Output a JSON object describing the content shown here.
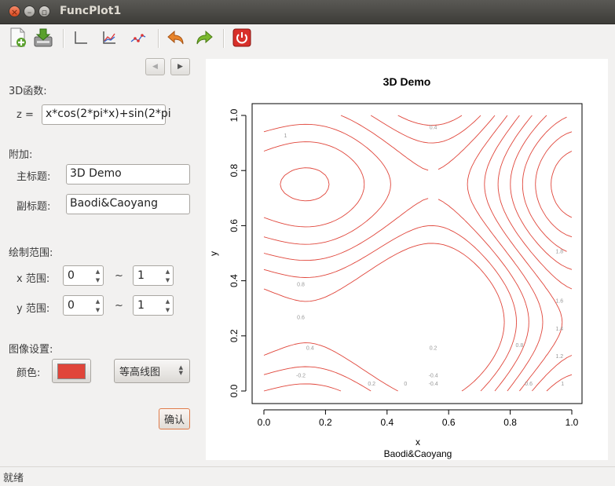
{
  "window": {
    "title": "FuncPlot1"
  },
  "toolbar": {
    "icons": [
      "new-file-icon",
      "save-icon",
      "axes-icon",
      "line-chart-icon",
      "scatter-icon",
      "undo-icon",
      "redo-icon",
      "power-icon"
    ]
  },
  "form": {
    "func_section": "3D函数:",
    "z_label": "z =",
    "z_value": "x*cos(2*pi*x)+sin(2*pi",
    "extra_section": "附加:",
    "main_title_label": "主标题:",
    "main_title_value": "3D Demo",
    "sub_title_label": "副标题:",
    "sub_title_value": "Baodi&Caoyang",
    "range_section": "绘制范围:",
    "x_range_label": "x 范围:",
    "x_min": "0",
    "x_max": "1",
    "y_range_label": "y 范围:",
    "y_min": "0",
    "y_max": "1",
    "tilde": "~",
    "image_section": "图像设置:",
    "color_label": "颜色:",
    "color_value": "#e0453a",
    "plot_type": "等高线图",
    "confirm": "确认"
  },
  "chart_data": {
    "type": "contour",
    "title": "3D Demo",
    "subtitle": "Baodi&Caoyang",
    "xlabel": "x",
    "ylabel": "y",
    "xlim": [
      0,
      1
    ],
    "ylim": [
      0,
      1
    ],
    "x_ticks": [
      "0.0",
      "0.2",
      "0.4",
      "0.6",
      "0.8",
      "1.0"
    ],
    "y_ticks": [
      "0.0",
      "0.2",
      "0.4",
      "0.6",
      "0.8",
      "1.0"
    ],
    "line_color": "#e0453a",
    "contour_labels": [
      "1",
      "0.4",
      "-0.4",
      "0.8",
      "0.6",
      "0.4",
      "0.2",
      "-0.2",
      "0.2",
      "0",
      "-0.4",
      "1.8",
      "1.6",
      "1.4",
      "1.2",
      "1",
      "0.8",
      "0.6"
    ]
  },
  "status": {
    "text": "就绪"
  }
}
